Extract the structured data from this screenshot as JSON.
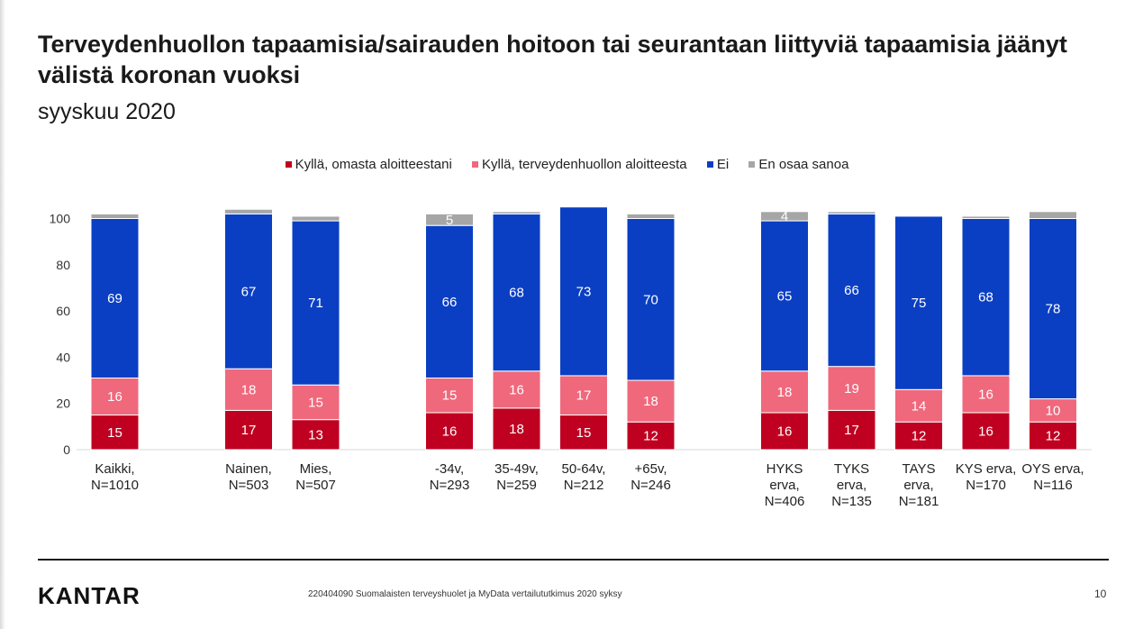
{
  "header": {
    "title": "Terveydenhuollon tapaamisia/sairauden hoitoon tai seurantaan liittyviä tapaamisia jäänyt välistä koronan vuoksi",
    "subtitle": "syyskuu 2020"
  },
  "footer": {
    "logo": "KANTAR",
    "text": "220404090 Suomalaisten terveyshuolet ja MyData vertailututkimus 2020 syksy",
    "page": "10"
  },
  "chart_data": {
    "type": "bar",
    "stacked": true,
    "title": "",
    "xlabel": "",
    "ylabel": "",
    "ylim": [
      0,
      100
    ],
    "yticks": [
      0,
      20,
      40,
      60,
      80,
      100
    ],
    "grid": false,
    "legend_position": "top",
    "categories": [
      "Kaikki,\nN=1010",
      "Nainen,\nN=503",
      "Mies,\nN=507",
      "-34v,\nN=293",
      "35-49v,\nN=259",
      "50-64v,\nN=212",
      "+65v,\nN=246",
      "HYKS\nerva,\nN=406",
      "TYKS\nerva,\nN=135",
      "TAYS\nerva,\nN=181",
      "KYS erva,\nN=170",
      "OYS erva,\nN=116"
    ],
    "groups": [
      [
        0
      ],
      [
        1,
        2
      ],
      [
        3,
        4,
        5,
        6
      ],
      [
        7,
        8,
        9,
        10,
        11
      ]
    ],
    "series": [
      {
        "name": "Kyllä, omasta aloitteestani",
        "color": "#c00020",
        "values": [
          15,
          17,
          13,
          16,
          18,
          15,
          12,
          16,
          17,
          12,
          16,
          12
        ]
      },
      {
        "name": "Kyllä, terveydenhuollon aloitteesta",
        "color": "#f0687c",
        "values": [
          16,
          18,
          15,
          15,
          16,
          17,
          18,
          18,
          19,
          14,
          16,
          10
        ]
      },
      {
        "name": "Ei",
        "color": "#0a3fc4",
        "values": [
          69,
          67,
          71,
          66,
          68,
          73,
          70,
          65,
          66,
          75,
          68,
          78
        ]
      },
      {
        "name": "En osaa sanoa",
        "color": "#a6a6a6",
        "values": [
          2,
          2,
          2,
          5,
          1,
          0,
          2,
          4,
          1,
          0,
          1,
          3
        ]
      }
    ],
    "label_colors": [
      "#ffffff",
      "#ffffff",
      "#ffffff",
      "#ffffff"
    ],
    "hidden_labels": [
      [],
      [],
      [],
      [
        0,
        1,
        2,
        4,
        5,
        6,
        8,
        9,
        10,
        11
      ]
    ]
  }
}
